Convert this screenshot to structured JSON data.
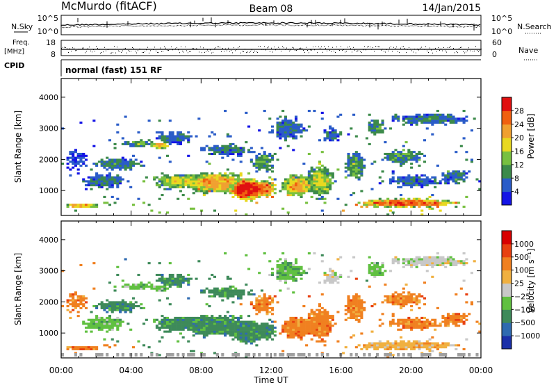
{
  "header": {
    "station": "McMurdo (fitACF)",
    "beam": "Beam 08",
    "date": "14/Jan/2015"
  },
  "top_panels": {
    "nsky_label": "N.Sky",
    "nsky_ticks": [
      "10^5",
      "10^0"
    ],
    "nsearch_label": "N.Search",
    "nsearch_ticks": [
      "10^5",
      "10^0"
    ],
    "freq_label": "Freq.",
    "freq_unit": "[MHz]",
    "freq_ticks": [
      "18",
      "8"
    ],
    "nave_label": "Nave",
    "nave_ticks": [
      "60",
      "0"
    ],
    "cpid_label": "CPID",
    "cpid_text": "normal (fast) 151 RF"
  },
  "chart_data": [
    {
      "type": "heatmap",
      "name": "power",
      "ylabel": "Slant Range [km]",
      "xlabel": "Time UT",
      "ylim": [
        200,
        4600
      ],
      "xlim": [
        "00:00",
        "24:00"
      ],
      "yticks": [
        "1000",
        "2000",
        "3000",
        "4000"
      ],
      "xticks": [
        "00:00",
        "04:00",
        "08:00",
        "12:00",
        "16:00",
        "20:00",
        "00:00"
      ],
      "colorbar": {
        "label": "Power [dB]",
        "ticks": [
          "4",
          "8",
          "12",
          "16",
          "20",
          "24",
          "28"
        ],
        "colors": [
          "#1414e6",
          "#2a5cc8",
          "#3c8a4a",
          "#78c040",
          "#e8d820",
          "#f0a030",
          "#f06010",
          "#e01010"
        ]
      }
    },
    {
      "type": "heatmap",
      "name": "velocity",
      "ylabel": "Slant Range [km]",
      "xlabel": "Time UT",
      "ylim": [
        200,
        4600
      ],
      "xlim": [
        "00:00",
        "24:00"
      ],
      "yticks": [
        "1000",
        "2000",
        "3000",
        "4000"
      ],
      "xticks": [
        "00:00",
        "04:00",
        "08:00",
        "12:00",
        "16:00",
        "20:00",
        "00:00"
      ],
      "colorbar": {
        "label": "Velocity [m s⁻¹]",
        "ticks": [
          "1000",
          "500",
          "100",
          "25",
          "−25",
          "−100",
          "−500",
          "−1000"
        ],
        "colors": [
          "#1a2fa8",
          "#2e6ab0",
          "#3e8a5a",
          "#60c040",
          "#c8c8c8",
          "#f0b040",
          "#f08020",
          "#e84010",
          "#d80000"
        ]
      }
    }
  ],
  "colors": {
    "ground_scatter": "#a0a0a0"
  }
}
